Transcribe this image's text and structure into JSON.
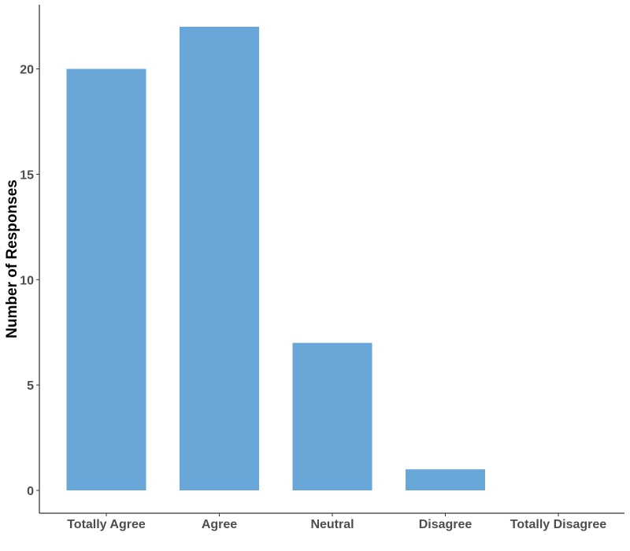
{
  "chart_data": {
    "type": "bar",
    "title": "",
    "xlabel": "",
    "ylabel": "Number of Responses",
    "categories": [
      "Totally Agree",
      "Agree",
      "Neutral",
      "Disagree",
      "Totally Disagree"
    ],
    "values": [
      20,
      22,
      7,
      1,
      0
    ],
    "ylim": [
      0,
      22
    ],
    "yticks": [
      0,
      5,
      10,
      15,
      20
    ],
    "grid": false,
    "legend": "none",
    "bar_color": "#6aa7d9",
    "axis_color": "#000000",
    "tick_label_color": "#4d4d4d"
  }
}
